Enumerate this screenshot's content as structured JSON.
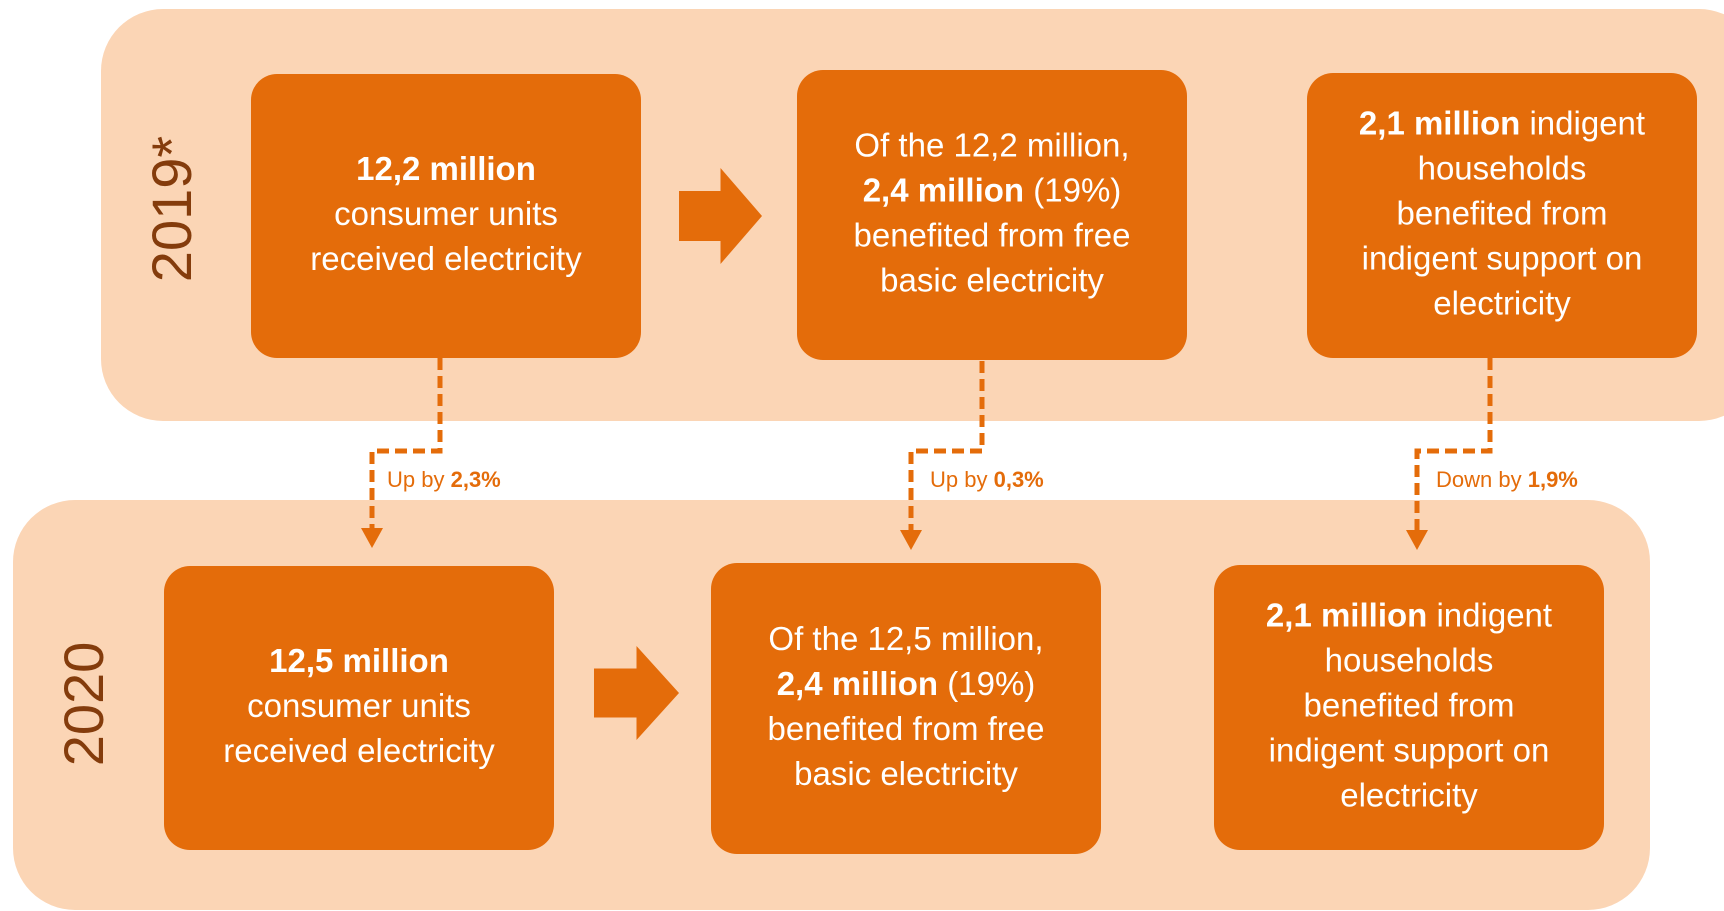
{
  "panels": [
    {
      "year": "2019*",
      "boxes": [
        {
          "lines": [
            [
              {
                "text": "12,2 million",
                "bold": true
              }
            ],
            [
              {
                "text": "consumer units"
              }
            ],
            [
              {
                "text": "received electricity"
              }
            ]
          ]
        },
        {
          "lines": [
            [
              {
                "text": "Of the 12,2 million,"
              }
            ],
            [
              {
                "text": "2,4 million",
                "bold": true
              },
              {
                "text": " (19%)"
              }
            ],
            [
              {
                "text": "benefited from free"
              }
            ],
            [
              {
                "text": "basic electricity"
              }
            ]
          ]
        },
        {
          "lines": [
            [
              {
                "text": "2,1 million",
                "bold": true
              },
              {
                "text": " indigent"
              }
            ],
            [
              {
                "text": "households"
              }
            ],
            [
              {
                "text": "benefited from"
              }
            ],
            [
              {
                "text": "indigent support on"
              }
            ],
            [
              {
                "text": "electricity"
              }
            ]
          ]
        }
      ]
    },
    {
      "year": "2020",
      "boxes": [
        {
          "lines": [
            [
              {
                "text": "12,5 million",
                "bold": true
              }
            ],
            [
              {
                "text": "consumer units"
              }
            ],
            [
              {
                "text": "received electricity"
              }
            ]
          ]
        },
        {
          "lines": [
            [
              {
                "text": "Of the 12,5 million,"
              }
            ],
            [
              {
                "text": "2,4 million",
                "bold": true
              },
              {
                "text": " (19%)"
              }
            ],
            [
              {
                "text": "benefited from free"
              }
            ],
            [
              {
                "text": "basic electricity"
              }
            ]
          ]
        },
        {
          "lines": [
            [
              {
                "text": "2,1 million",
                "bold": true
              },
              {
                "text": " indigent"
              }
            ],
            [
              {
                "text": "households"
              }
            ],
            [
              {
                "text": "benefited from"
              }
            ],
            [
              {
                "text": "indigent support on"
              }
            ],
            [
              {
                "text": "electricity"
              }
            ]
          ]
        }
      ]
    }
  ],
  "changes": [
    {
      "prefix": "Up by ",
      "value": "2,3%"
    },
    {
      "prefix": "Up by ",
      "value": "0,3%"
    },
    {
      "prefix": "Down by ",
      "value": "1,9%"
    }
  ]
}
